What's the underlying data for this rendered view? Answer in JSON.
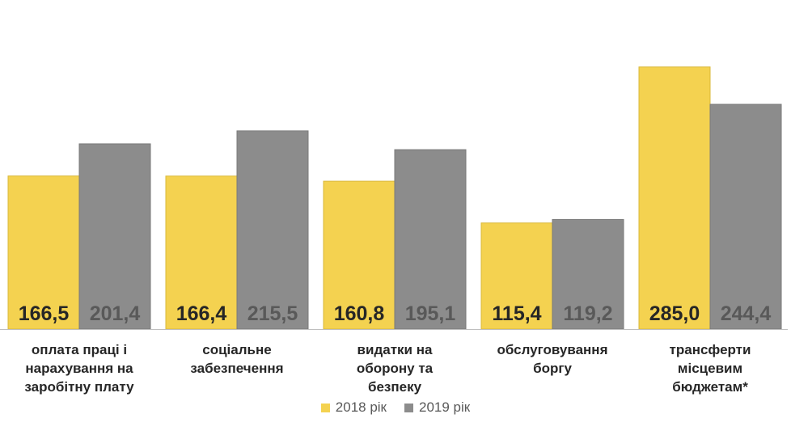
{
  "chart_data": {
    "type": "bar",
    "categories": [
      "оплата праці і\nнарахування на\nзаробітну плату",
      "соціальне\nзабезпечення",
      "видатки на\nоборону та\nбезпеку",
      "обслуговування\nборгу",
      "трансферти\nмісцевим\nбюджетам*"
    ],
    "series": [
      {
        "name": "2018 рік",
        "color": "#F4D250",
        "values": [
          166.5,
          166.4,
          160.8,
          115.4,
          285.0
        ],
        "labels": [
          "166,5",
          "166,4",
          "160,8",
          "115,4",
          "285,0"
        ]
      },
      {
        "name": "2019 рік",
        "color": "#8C8C8C",
        "values": [
          201.4,
          215.5,
          195.1,
          119.2,
          244.4
        ],
        "labels": [
          "201,4",
          "215,5",
          "195,1",
          "119,2",
          "244,4"
        ]
      }
    ],
    "ylim": [
      0,
      300
    ],
    "grid": false,
    "legend_position": "bottom"
  }
}
